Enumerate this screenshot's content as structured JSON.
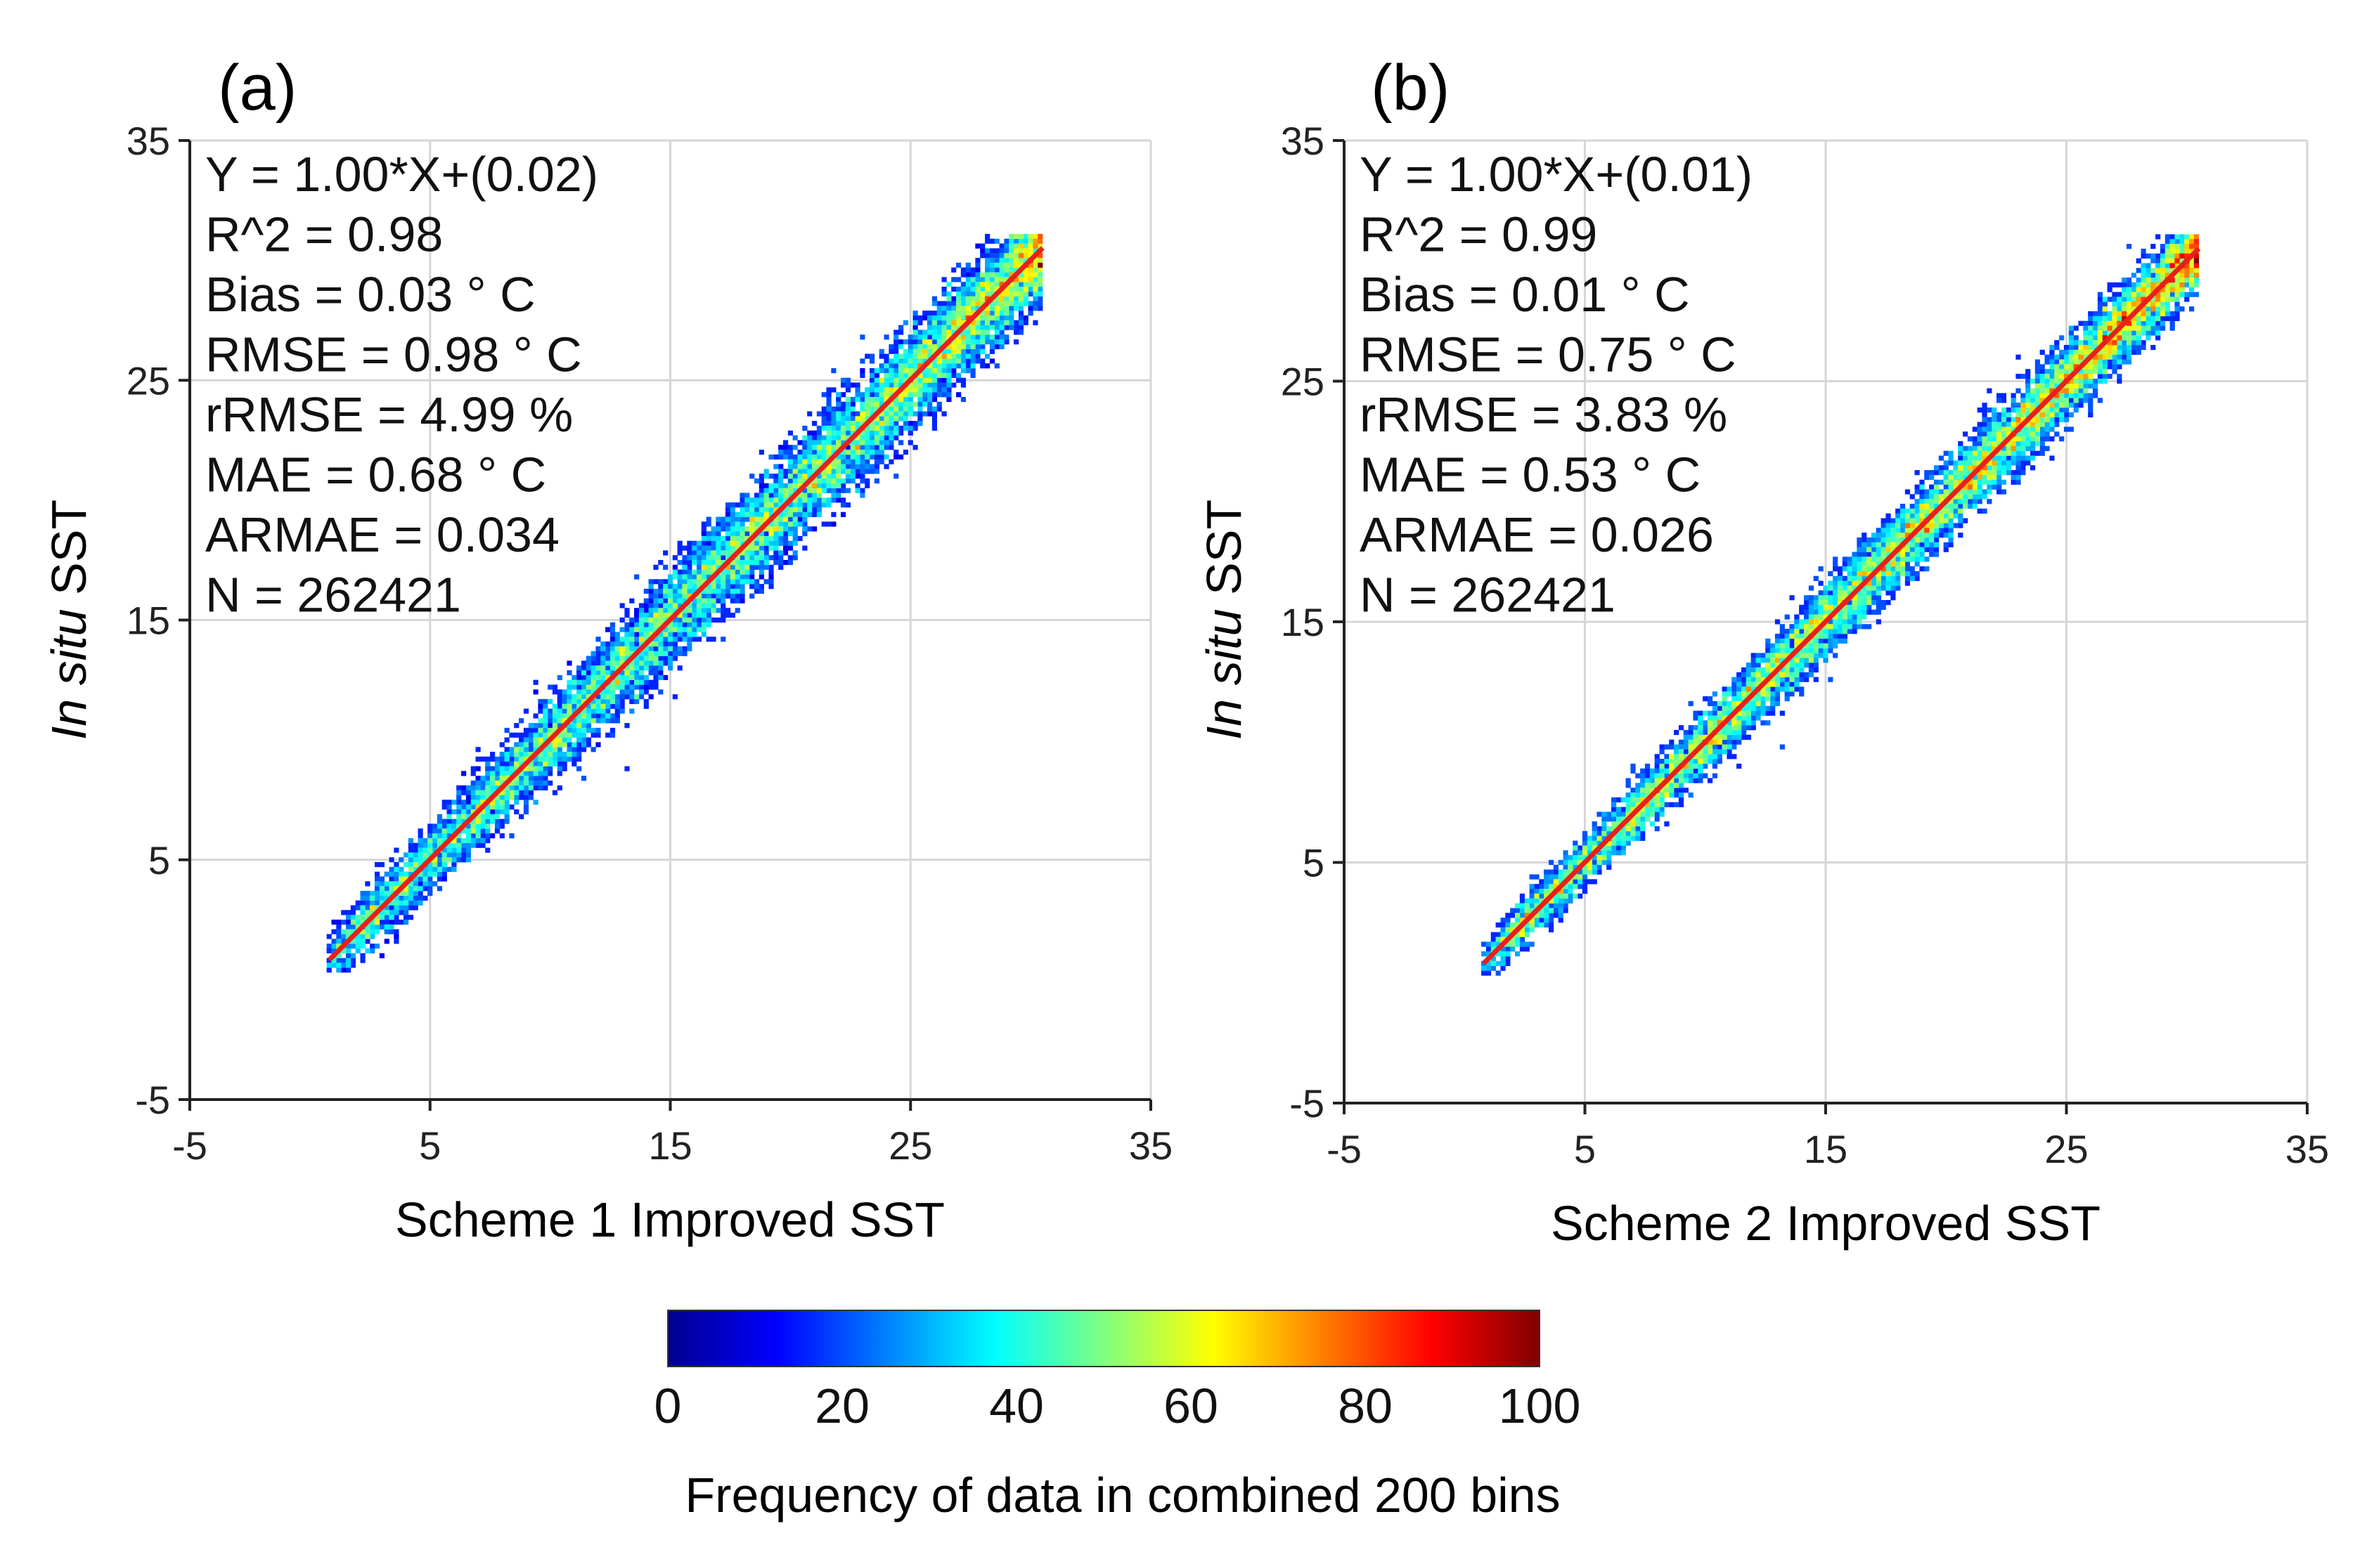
{
  "chart_data": [
    {
      "type": "heatmap",
      "panel_label": "(a)",
      "xlabel": "Scheme 1 Improved SST",
      "ylabel_italic": "In situ",
      "ylabel_rest": " SST",
      "xlim": [
        -5,
        35
      ],
      "ylim": [
        -5,
        35
      ],
      "x_ticks": [
        -5,
        5,
        15,
        25,
        35
      ],
      "y_ticks": [
        -5,
        5,
        15,
        25,
        35
      ],
      "grid": true,
      "stats": [
        "Y = 1.00*X+(0.02)",
        "R^2 = 0.98",
        "Bias = 0.03 ° C",
        "RMSE = 0.98 ° C",
        "rRMSE = 4.99 %",
        "MAE = 0.68 ° C",
        "ARMAE = 0.034",
        "N = 262421"
      ],
      "fit_line": {
        "slope": 1.0,
        "intercept": 0.02,
        "x_range": [
          0.8,
          30.5
        ],
        "color": "#e8201c"
      },
      "density_spread_sst": 0.98,
      "x_data_range": [
        0.8,
        30.5
      ]
    },
    {
      "type": "heatmap",
      "panel_label": "(b)",
      "xlabel": "Scheme 2 Improved SST",
      "ylabel_italic": "In situ",
      "ylabel_rest": " SST",
      "xlim": [
        -5,
        35
      ],
      "ylim": [
        -5,
        35
      ],
      "x_ticks": [
        -5,
        5,
        15,
        25,
        35
      ],
      "y_ticks": [
        -5,
        5,
        15,
        25,
        35
      ],
      "grid": true,
      "stats": [
        "Y = 1.00*X+(0.01)",
        "R^2 = 0.99",
        "Bias = 0.01 ° C",
        "RMSE = 0.75 ° C",
        "rRMSE = 3.83 %",
        "MAE = 0.53 ° C",
        "ARMAE = 0.026",
        "N = 262421"
      ],
      "fit_line": {
        "slope": 1.0,
        "intercept": 0.01,
        "x_range": [
          0.8,
          30.5
        ],
        "color": "#e8201c"
      },
      "density_spread_sst": 0.75,
      "x_data_range": [
        0.8,
        30.5
      ]
    }
  ],
  "colorbar": {
    "ticks": [
      0,
      20,
      40,
      60,
      80,
      100
    ],
    "range": [
      0,
      100
    ],
    "label": "Frequency of data in combined 200 bins",
    "colormap": [
      "#00008f",
      "#0000ff",
      "#0080ff",
      "#00ffff",
      "#80ff80",
      "#ffff00",
      "#ff8000",
      "#ff0000",
      "#800000"
    ]
  }
}
